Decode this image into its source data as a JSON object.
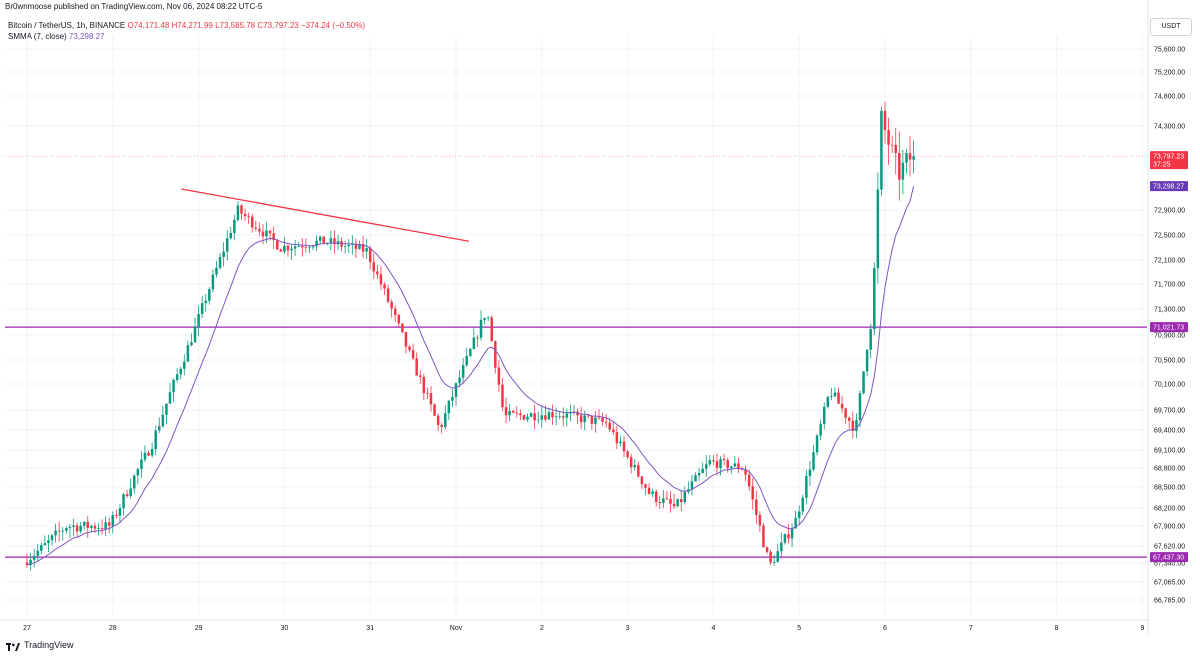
{
  "header": {
    "published": "Br0wnmoose published on TradingView.com, Nov 06, 2024 08:22 UTC-5"
  },
  "legend": {
    "symbol": "Bitcoin / TetherUS, 1h, BINANCE",
    "ohlc": "O74,171.48  H74,271.99  L73,585.78  C73,797.23  −374.24 (−0.50%)",
    "indicator": "SMMA (7, close)",
    "indicator_value": "73,298.27"
  },
  "currency_button": "USDT",
  "footer": {
    "brand": "TradingView"
  },
  "colors": {
    "up": "#089981",
    "down": "#f23645",
    "smma": "#7e57c2",
    "level": "#9c27b0",
    "trendline": "#f23645"
  },
  "chart_data": {
    "type": "candlestick",
    "symbol": "BTC/USDT",
    "timeframe": "1h",
    "exchange": "BINANCE",
    "y_ticks": [
      75600,
      75200,
      74800,
      74300,
      72900,
      72500,
      72100,
      71700,
      71300,
      70900,
      70500,
      70100,
      69700,
      69400,
      69100,
      68800,
      68500,
      68200,
      67900,
      67620,
      67340,
      67065,
      66785
    ],
    "y_tick_labels": [
      "75,600.00",
      "75,200.00",
      "74,800.00",
      "74,300.00",
      "72,900.00",
      "72,500.00",
      "72,100.00",
      "71,700.00",
      "71,300.00",
      "70,900.00",
      "70,500.00",
      "70,100.00",
      "69,700.00",
      "69,400.00",
      "69,100.00",
      "68,800.00",
      "68,500.00",
      "68,200.00",
      "67,900.00",
      "67,620.00",
      "67,340.00",
      "67,065.00",
      "66,785.00"
    ],
    "x_ticks": [
      "27",
      "28",
      "29",
      "30",
      "31",
      "Nov",
      "2",
      "3",
      "4",
      "5",
      "6",
      "7",
      "8",
      "9"
    ],
    "x_tick_day_index": [
      0,
      1,
      2,
      3,
      4,
      5,
      6,
      7,
      8,
      9,
      10,
      11,
      12,
      13
    ],
    "anchors": [
      {
        "day": 0.0,
        "price": 67350
      },
      {
        "day": 0.5,
        "price": 67900
      },
      {
        "day": 1.0,
        "price": 67900
      },
      {
        "day": 1.5,
        "price": 69200
      },
      {
        "day": 2.0,
        "price": 71000
      },
      {
        "day": 2.5,
        "price": 72900
      },
      {
        "day": 3.0,
        "price": 72300
      },
      {
        "day": 3.5,
        "price": 72400
      },
      {
        "day": 4.0,
        "price": 72250
      },
      {
        "day": 4.35,
        "price": 71100
      },
      {
        "day": 4.85,
        "price": 69400
      },
      {
        "day": 5.4,
        "price": 71300
      },
      {
        "day": 5.6,
        "price": 69600
      },
      {
        "day": 6.2,
        "price": 69650
      },
      {
        "day": 6.8,
        "price": 69500
      },
      {
        "day": 7.3,
        "price": 68400
      },
      {
        "day": 7.6,
        "price": 68200
      },
      {
        "day": 8.0,
        "price": 68900
      },
      {
        "day": 8.4,
        "price": 68800
      },
      {
        "day": 8.7,
        "price": 67300
      },
      {
        "day": 9.0,
        "price": 68000
      },
      {
        "day": 9.4,
        "price": 70000
      },
      {
        "day": 9.7,
        "price": 69400
      },
      {
        "day": 9.9,
        "price": 71400
      },
      {
        "day": 10.0,
        "price": 74400
      },
      {
        "day": 10.2,
        "price": 73500
      },
      {
        "day": 10.35,
        "price": 73797.23
      }
    ],
    "price_range": [
      66600,
      75850
    ],
    "day_range": [
      -0.2,
      13.5
    ],
    "trendline": {
      "from": {
        "day": 1.8,
        "price": 73250
      },
      "to": {
        "day": 5.15,
        "price": 72400
      }
    },
    "horizontal_levels": [
      {
        "price": 71021.73,
        "label": "71,021.73"
      },
      {
        "price": 67437.3,
        "label": "67,437.30"
      }
    ],
    "current_price": {
      "price": 73797.23,
      "label": "73,797.23",
      "countdown": "37:25"
    },
    "smma_last": {
      "price": 73298.27,
      "label": "73,298.27"
    }
  }
}
